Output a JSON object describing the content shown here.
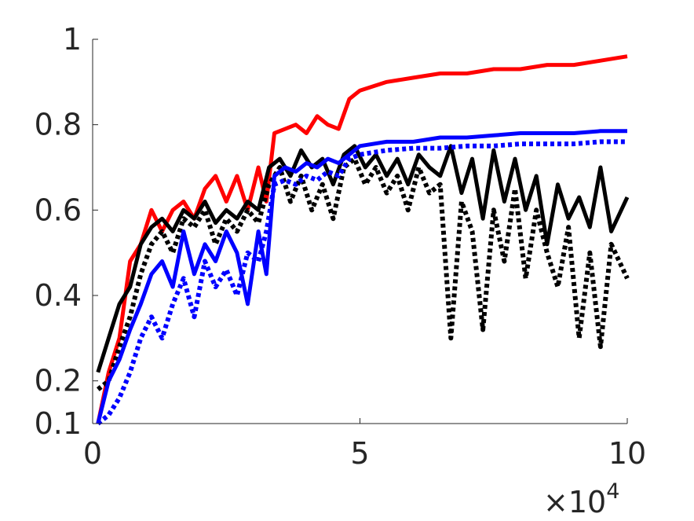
{
  "chart_data": {
    "type": "line",
    "title": "",
    "xlabel": "",
    "ylabel": "",
    "xlim": [
      0,
      10
    ],
    "ylim": [
      0.1,
      1
    ],
    "x_exponent_label": "×10",
    "x_exponent_power": "4",
    "xticks": [
      {
        "value": 0,
        "label": "0"
      },
      {
        "value": 5,
        "label": "5"
      },
      {
        "value": 10,
        "label": "10"
      }
    ],
    "yticks": [
      {
        "value": 0.1,
        "label": "0.1"
      },
      {
        "value": 0.2,
        "label": "0.2"
      },
      {
        "value": 0.4,
        "label": "0.4"
      },
      {
        "value": 0.6,
        "label": "0.6"
      },
      {
        "value": 0.8,
        "label": "0.8"
      },
      {
        "value": 1,
        "label": "1"
      }
    ],
    "grid": false,
    "series": [
      {
        "color": "#ff0000",
        "style": "solid",
        "x": [
          0.1,
          0.3,
          0.5,
          0.7,
          0.9,
          1.1,
          1.3,
          1.5,
          1.7,
          1.9,
          2.1,
          2.3,
          2.5,
          2.7,
          2.9,
          3.1,
          3.25,
          3.4,
          3.6,
          3.8,
          4.0,
          4.2,
          4.4,
          4.6,
          4.8,
          4.9,
          5.0,
          5.5,
          6.0,
          6.5,
          7.0,
          7.5,
          8.0,
          8.5,
          9.0,
          9.5,
          10.0
        ],
        "y": [
          0.1,
          0.22,
          0.3,
          0.48,
          0.52,
          0.6,
          0.55,
          0.6,
          0.62,
          0.58,
          0.65,
          0.68,
          0.62,
          0.68,
          0.6,
          0.7,
          0.62,
          0.78,
          0.79,
          0.8,
          0.78,
          0.82,
          0.8,
          0.79,
          0.86,
          0.87,
          0.88,
          0.9,
          0.91,
          0.92,
          0.92,
          0.93,
          0.93,
          0.94,
          0.94,
          0.95,
          0.96
        ]
      },
      {
        "color": "#000000",
        "style": "solid",
        "x": [
          0.1,
          0.3,
          0.5,
          0.7,
          0.9,
          1.1,
          1.3,
          1.5,
          1.7,
          1.9,
          2.1,
          2.3,
          2.5,
          2.7,
          2.9,
          3.1,
          3.3,
          3.5,
          3.7,
          3.9,
          4.1,
          4.3,
          4.5,
          4.7,
          4.9,
          5.1,
          5.3,
          5.5,
          5.7,
          5.9,
          6.1,
          6.3,
          6.5,
          6.7,
          6.9,
          7.1,
          7.3,
          7.5,
          7.7,
          7.9,
          8.1,
          8.3,
          8.5,
          8.7,
          8.9,
          9.1,
          9.3,
          9.5,
          9.7,
          10.0
        ],
        "y": [
          0.22,
          0.3,
          0.38,
          0.42,
          0.52,
          0.56,
          0.58,
          0.55,
          0.6,
          0.58,
          0.62,
          0.57,
          0.6,
          0.58,
          0.62,
          0.6,
          0.7,
          0.72,
          0.68,
          0.74,
          0.7,
          0.72,
          0.66,
          0.73,
          0.75,
          0.7,
          0.73,
          0.68,
          0.72,
          0.66,
          0.73,
          0.7,
          0.68,
          0.75,
          0.64,
          0.72,
          0.58,
          0.74,
          0.62,
          0.72,
          0.6,
          0.68,
          0.52,
          0.66,
          0.58,
          0.63,
          0.56,
          0.7,
          0.55,
          0.63
        ]
      },
      {
        "color": "#000000",
        "style": "dotted",
        "x": [
          0.1,
          0.3,
          0.5,
          0.7,
          0.9,
          1.1,
          1.3,
          1.5,
          1.7,
          1.9,
          2.1,
          2.3,
          2.5,
          2.7,
          2.9,
          3.1,
          3.3,
          3.5,
          3.7,
          3.9,
          4.1,
          4.3,
          4.5,
          4.7,
          4.9,
          5.1,
          5.3,
          5.5,
          5.7,
          5.9,
          6.1,
          6.3,
          6.5,
          6.7,
          6.9,
          7.1,
          7.3,
          7.5,
          7.7,
          7.9,
          8.1,
          8.3,
          8.5,
          8.7,
          8.9,
          9.1,
          9.3,
          9.5,
          9.7,
          10.0
        ],
        "y": [
          0.18,
          0.2,
          0.28,
          0.35,
          0.45,
          0.52,
          0.55,
          0.5,
          0.58,
          0.56,
          0.6,
          0.52,
          0.58,
          0.55,
          0.6,
          0.57,
          0.66,
          0.7,
          0.62,
          0.68,
          0.6,
          0.66,
          0.58,
          0.7,
          0.72,
          0.66,
          0.7,
          0.64,
          0.68,
          0.6,
          0.7,
          0.64,
          0.66,
          0.3,
          0.62,
          0.55,
          0.32,
          0.6,
          0.48,
          0.65,
          0.44,
          0.6,
          0.5,
          0.42,
          0.56,
          0.3,
          0.5,
          0.28,
          0.52,
          0.44
        ]
      },
      {
        "color": "#0000ff",
        "style": "solid",
        "x": [
          0.1,
          0.3,
          0.5,
          0.7,
          0.9,
          1.1,
          1.3,
          1.5,
          1.7,
          1.9,
          2.1,
          2.3,
          2.5,
          2.7,
          2.9,
          3.1,
          3.25,
          3.4,
          3.6,
          3.8,
          4.0,
          4.2,
          4.4,
          4.6,
          4.8,
          5.0,
          5.5,
          6.0,
          6.5,
          7.0,
          7.5,
          8.0,
          8.5,
          9.0,
          9.5,
          10.0
        ],
        "y": [
          0.1,
          0.2,
          0.25,
          0.32,
          0.38,
          0.45,
          0.48,
          0.42,
          0.55,
          0.45,
          0.52,
          0.48,
          0.55,
          0.5,
          0.38,
          0.55,
          0.45,
          0.68,
          0.7,
          0.69,
          0.71,
          0.7,
          0.72,
          0.71,
          0.73,
          0.75,
          0.76,
          0.76,
          0.77,
          0.77,
          0.775,
          0.78,
          0.78,
          0.78,
          0.785,
          0.785
        ]
      },
      {
        "color": "#0000ff",
        "style": "dotted",
        "x": [
          0.1,
          0.3,
          0.5,
          0.7,
          0.9,
          1.1,
          1.3,
          1.5,
          1.7,
          1.9,
          2.1,
          2.3,
          2.5,
          2.7,
          2.9,
          3.1,
          3.25,
          3.4,
          3.6,
          3.8,
          4.0,
          4.2,
          4.4,
          4.6,
          4.8,
          5.0,
          5.5,
          6.0,
          6.5,
          7.0,
          7.5,
          8.0,
          8.5,
          9.0,
          9.5,
          10.0
        ],
        "y": [
          0.1,
          0.12,
          0.16,
          0.22,
          0.3,
          0.35,
          0.3,
          0.38,
          0.44,
          0.35,
          0.48,
          0.42,
          0.46,
          0.4,
          0.5,
          0.48,
          0.55,
          0.66,
          0.67,
          0.66,
          0.68,
          0.67,
          0.69,
          0.68,
          0.72,
          0.73,
          0.74,
          0.745,
          0.745,
          0.75,
          0.75,
          0.755,
          0.755,
          0.755,
          0.76,
          0.76
        ]
      }
    ]
  }
}
